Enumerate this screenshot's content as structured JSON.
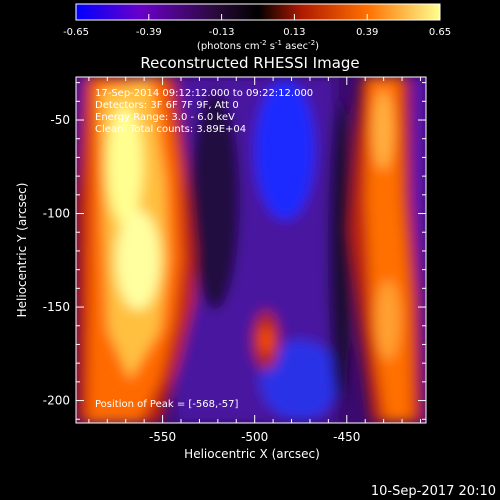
{
  "chart_data": {
    "type": "heatmap",
    "title": "Reconstructed RHESSI Image",
    "xlabel": "Heliocentric X (arcsec)",
    "ylabel": "Heliocentric Y (arcsec)",
    "xlim": [
      -597,
      -407
    ],
    "ylim": [
      -212,
      -27
    ],
    "x_ticks": [
      -550,
      -500,
      -450
    ],
    "y_ticks": [
      -50,
      -100,
      -150,
      -200
    ],
    "colorbar": {
      "range": [
        -0.65,
        0.65
      ],
      "ticks": [
        "-0.65",
        "-0.39",
        "-0.13",
        "0.13",
        "0.39",
        "0.65"
      ],
      "label_prefix": "(photons cm",
      "label_exp1": "-2",
      "label_mid": " s",
      "label_exp2": "-1",
      "label_mid2": " asec",
      "label_exp3": "-2",
      "label_suffix": ")",
      "colors": [
        "#0000ff",
        "#6a00c8",
        "#2a0a3c",
        "#000000",
        "#b01a00",
        "#ff7000",
        "#ffff90"
      ]
    },
    "annotations": [
      "17-Sep-2014 09:12:12.000 to 09:22:12.000",
      "Detectors: 3F 6F 7F 9F, Att 0",
      "Energy Range: 3.0 - 6.0 keV",
      "Clean: Total counts: 3.89E+04",
      "Position of Peak = [-568,-57]"
    ],
    "peak": {
      "x": -568,
      "y": -57
    },
    "date_stamp": "10-Sep-2017 20:10"
  }
}
